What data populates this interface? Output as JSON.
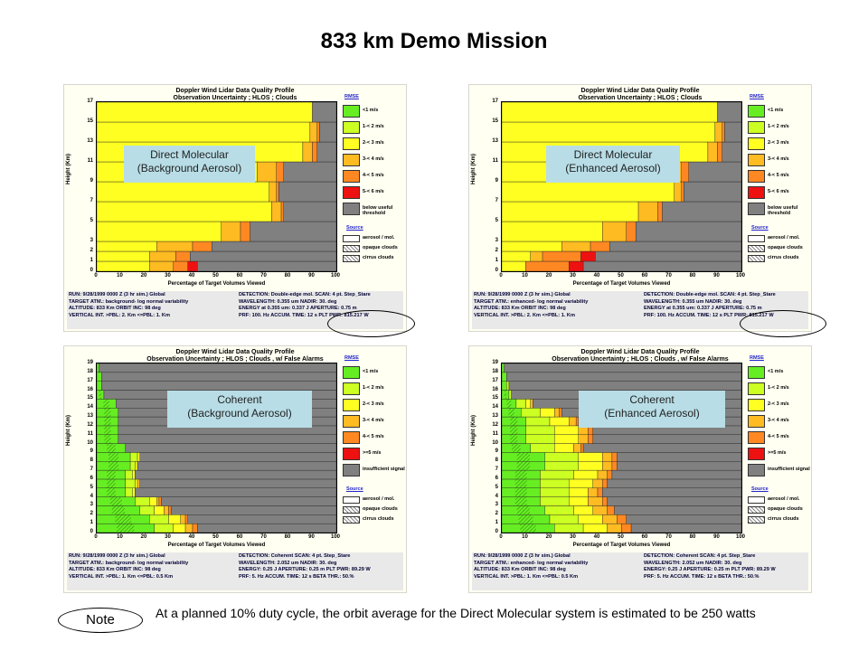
{
  "slide_title": "833 km Demo Mission",
  "note_label": "Note",
  "note_text": "At a planned 10% duty cycle, the orbit average for the Direct Molecular system is estimated to be 250 watts",
  "colors": {
    "green": "#66ee22",
    "lime": "#ccff22",
    "yellow": "#ffff22",
    "gold": "#ffbb22",
    "orange": "#ff8822",
    "red": "#ee1111",
    "gray": "#808080"
  },
  "panels": [
    {
      "id": "p1",
      "label": [
        "Direct Molecular",
        "(Background Aerosol)"
      ],
      "title_line1": "Doppler Wind Lidar Data Quality Profile",
      "title_line2": "Observation Uncertainty ; HLOS ; Clouds",
      "y_axis_title": "Height (Km)",
      "x_axis_title": "Percentage of Target Volumes Viewed",
      "legend_title": "RMSE",
      "legend_items": [
        "<1 m/s",
        "1-< 2 m/s",
        "2-< 3 m/s",
        "3-< 4 m/s",
        "4-< 5 m/s",
        "5-< 6 m/s",
        "below useful threshold"
      ],
      "source_title": "Source",
      "source_items": [
        "aerosol / mol.",
        "opaque clouds",
        "cirrus clouds"
      ],
      "info_left": [
        "RUN:   9/28/1999 0000 Z (3 hr sim.) Global",
        "TARGET ATM.: background- log normal variability",
        "ALTITUDE: 833 Km      ORBIT INC: 98 deg",
        "VERTICAL INT. >PBL: 2. Km   <=PBL: 1. Km"
      ],
      "info_right": [
        "DETECTION: Double-edge mol.  SCAN: 4 pt. Step_Stare",
        "WAVELENGTH:  0.355 um     NADIR: 30. deg",
        "ENERGY at 0.355 um:  0.337 J   APERTURE: 0.75 m",
        "PRF: 100. Hz     ACCUM. TIME: 12 s PLT PWR: 815.217 W"
      ]
    },
    {
      "id": "p2",
      "label": [
        "Direct Molecular",
        "(Enhanced Aerosol)"
      ],
      "title_line1": "Doppler Wind Lidar Data Quality Profile",
      "title_line2": "Observation Uncertainty ; HLOS ; Clouds",
      "y_axis_title": "Height (Km)",
      "x_axis_title": "Percentage of Target Volumes Viewed",
      "legend_title": "RMSE",
      "legend_items": [
        "<1 m/s",
        "1-< 2 m/s",
        "2-< 3 m/s",
        "3-< 4 m/s",
        "4-< 5 m/s",
        "5-< 6 m/s",
        "below useful threshold"
      ],
      "source_title": "Source",
      "source_items": [
        "aerosol / mol.",
        "opaque clouds",
        "cirrus clouds"
      ],
      "info_left": [
        "RUN:   9/28/1999 0000 Z (3 hr sim.) Global",
        "TARGET ATM.: enhanced- log normal variability",
        "ALTITUDE: 833 Km      ORBIT INC: 98 deg",
        "VERTICAL INT. >PBL: 2. Km   <=PBL: 1. Km"
      ],
      "info_right": [
        "DETECTION: Double-edge mol.  SCAN: 4 pt. Step_Stare",
        "WAVELENGTH:  0.355 um     NADIR: 30. deg",
        "ENERGY at 0.355 um:  0.337 J   APERTURE: 0.75 m",
        "PRF: 100. Hz     ACCUM. TIME: 12 s PLT PWR: 815.217 W"
      ]
    },
    {
      "id": "p3",
      "label": [
        "Coherent",
        "(Background Aerosol)"
      ],
      "title_line1": "Doppler Wind Lidar Data Quality Profile",
      "title_line2": "Observation Uncertainty ; HLOS ; Clouds , w/ False Alarms",
      "y_axis_title": "Height (Km)",
      "x_axis_title": "Percentage of Target Volumes Viewed",
      "legend_title": "RMSE",
      "legend_items": [
        "<1 m/s",
        "1-< 2 m/s",
        "2-< 3 m/s",
        "3-< 4 m/s",
        "4-< 5 m/s",
        ">=5 m/s",
        "insufficient signal"
      ],
      "source_title": "Source",
      "source_items": [
        "aerosol / mol.",
        "opaque clouds",
        "cirrus clouds"
      ],
      "info_left": [
        "RUN:   9/28/1999 0000 Z (3 hr sim.) Global",
        "TARGET ATM.: background- log normal variability",
        "ALTITUDE: 833 Km      ORBIT INC: 98 deg",
        "VERTICAL INT. >PBL: 1. Km   <=PBL: 0.5 Km"
      ],
      "info_right": [
        "DETECTION: Coherent  SCAN: 4 pt. Step_Stare",
        "WAVELENGTH:  2.052 um     NADIR: 30. deg",
        "ENERGY: 0.25 J   APERTURE: 0.25 m   PLT PWR: 89.29 W",
        "PRF: 5. Hz     ACCUM. TIME: 12 s    BETA THR.: 50.%"
      ]
    },
    {
      "id": "p4",
      "label": [
        "Coherent",
        "(Enhanced Aerosol)"
      ],
      "title_line1": "Doppler Wind Lidar Data Quality Profile",
      "title_line2": "Observation Uncertainty ; HLOS ; Clouds , w/ False Alarms",
      "y_axis_title": "Height (Km)",
      "x_axis_title": "Percentage of Target Volumes Viewed",
      "legend_title": "RMSE",
      "legend_items": [
        "<1 m/s",
        "1-< 2 m/s",
        "2-< 3 m/s",
        "3-< 4 m/s",
        "4-< 5 m/s",
        ">=5 m/s",
        "insufficient signal"
      ],
      "source_title": "Source",
      "source_items": [
        "aerosol / mol.",
        "opaque clouds",
        "cirrus clouds"
      ],
      "info_left": [
        "RUN:   9/28/1999 0000 Z (3 hr sim.) Global",
        "TARGET ATM.: enhanced- log normal variability",
        "ALTITUDE: 833 Km      ORBIT INC: 98 deg",
        "VERTICAL INT. >PBL: 1. Km   <=PBL: 0.5 Km"
      ],
      "info_right": [
        "DETECTION: Coherent  SCAN: 4 pt. Step_Stare",
        "WAVELENGTH:  2.052 um     NADIR: 30. deg",
        "ENERGY: 0.25 J   APERTURE: 0.25 m   PLT PWR: 89.29 W",
        "PRF: 5. Hz     ACCUM. TIME: 12 s    BETA THR.: 50.%"
      ]
    }
  ],
  "chart_data": [
    {
      "type": "bar",
      "orientation": "horizontal-stacked",
      "panel": "p1",
      "title": "Doppler Wind Lidar Data Quality Profile",
      "xlabel": "Percentage of Target Volumes Viewed",
      "ylabel": "Height (Km)",
      "xlim": [
        0,
        100
      ],
      "ylim": [
        0,
        17
      ],
      "x_ticks": [
        0,
        10,
        20,
        30,
        40,
        50,
        60,
        70,
        80,
        90,
        100
      ],
      "y_ticks": [
        0,
        1,
        2,
        3,
        5,
        7,
        9,
        11,
        13,
        15,
        17
      ],
      "categories_km": [
        [
          0,
          1
        ],
        [
          1,
          2
        ],
        [
          2,
          3
        ],
        [
          3,
          5
        ],
        [
          5,
          7
        ],
        [
          7,
          9
        ],
        [
          9,
          11
        ],
        [
          11,
          13
        ],
        [
          13,
          15
        ],
        [
          15,
          17
        ]
      ],
      "series": [
        {
          "name": "<1 m/s",
          "values": [
            0,
            0,
            0,
            0,
            0,
            0,
            0,
            0,
            0,
            0
          ]
        },
        {
          "name": "1-< 2 m/s",
          "values": [
            0,
            0,
            0,
            0,
            0,
            0,
            0,
            0,
            0,
            0
          ]
        },
        {
          "name": "2-< 3 m/s",
          "values": [
            22,
            22,
            25,
            52,
            73,
            72,
            67,
            86,
            89,
            90
          ]
        },
        {
          "name": "3-< 4 m/s",
          "values": [
            10,
            11,
            15,
            8,
            4,
            3,
            8,
            4,
            3,
            0
          ]
        },
        {
          "name": "4-< 5 m/s",
          "values": [
            6,
            6,
            8,
            4,
            1,
            1,
            3,
            2,
            1,
            0
          ]
        },
        {
          "name": "5-< 6 m/s",
          "values": [
            4,
            0,
            0,
            0,
            0,
            0,
            0,
            0,
            0,
            0
          ]
        },
        {
          "name": "below useful threshold",
          "values": [
            58,
            61,
            52,
            36,
            22,
            24,
            22,
            8,
            7,
            10
          ]
        }
      ]
    },
    {
      "type": "bar",
      "orientation": "horizontal-stacked",
      "panel": "p2",
      "title": "Doppler Wind Lidar Data Quality Profile",
      "xlabel": "Percentage of Target Volumes Viewed",
      "ylabel": "Height (Km)",
      "xlim": [
        0,
        100
      ],
      "ylim": [
        0,
        17
      ],
      "x_ticks": [
        0,
        10,
        20,
        30,
        40,
        50,
        60,
        70,
        80,
        90,
        100
      ],
      "y_ticks": [
        0,
        1,
        2,
        3,
        5,
        7,
        9,
        11,
        13,
        15,
        17
      ],
      "categories_km": [
        [
          0,
          1
        ],
        [
          1,
          2
        ],
        [
          2,
          3
        ],
        [
          3,
          5
        ],
        [
          5,
          7
        ],
        [
          7,
          9
        ],
        [
          9,
          11
        ],
        [
          11,
          13
        ],
        [
          13,
          15
        ],
        [
          15,
          17
        ]
      ],
      "series": [
        {
          "name": "<1 m/s",
          "values": [
            0,
            0,
            0,
            0,
            0,
            0,
            0,
            0,
            0,
            0
          ]
        },
        {
          "name": "1-< 2 m/s",
          "values": [
            0,
            0,
            0,
            0,
            0,
            0,
            0,
            0,
            0,
            0
          ]
        },
        {
          "name": "2-< 3 m/s",
          "values": [
            10,
            12,
            25,
            42,
            57,
            72,
            67,
            86,
            89,
            90
          ]
        },
        {
          "name": "3-< 4 m/s",
          "values": [
            0,
            5,
            12,
            10,
            8,
            3,
            8,
            4,
            3,
            0
          ]
        },
        {
          "name": "4-< 5 m/s",
          "values": [
            18,
            16,
            8,
            4,
            2,
            1,
            3,
            2,
            1,
            0
          ]
        },
        {
          "name": "5-< 6 m/s",
          "values": [
            6,
            6,
            0,
            0,
            0,
            0,
            0,
            0,
            0,
            0
          ]
        },
        {
          "name": "below useful threshold",
          "values": [
            66,
            61,
            55,
            44,
            33,
            24,
            22,
            8,
            7,
            10
          ]
        }
      ]
    },
    {
      "type": "bar",
      "orientation": "horizontal-stacked",
      "panel": "p3",
      "title": "Doppler Wind Lidar Data Quality Profile",
      "xlabel": "Percentage of Target Volumes Viewed",
      "ylabel": "Height (Km)",
      "xlim": [
        0,
        100
      ],
      "ylim": [
        0,
        19
      ],
      "x_ticks": [
        0,
        10,
        20,
        30,
        40,
        50,
        60,
        70,
        80,
        90,
        100
      ],
      "y_ticks": [
        0,
        1,
        2,
        3,
        4,
        5,
        6,
        7,
        8,
        9,
        10,
        11,
        12,
        13,
        14,
        15,
        16,
        17,
        18,
        19
      ],
      "categories_km": [
        0,
        1,
        2,
        3,
        4,
        5,
        6,
        7,
        8,
        9,
        10,
        11,
        12,
        13,
        14,
        15,
        16,
        17,
        18
      ],
      "series": [
        {
          "name": "<1 m/s",
          "values": [
            24,
            22,
            18,
            16,
            12,
            12,
            12,
            14,
            14,
            12,
            9,
            9,
            9,
            9,
            8,
            3,
            2,
            2,
            1
          ]
        },
        {
          "name": "1-< 2 m/s",
          "values": [
            8,
            8,
            6,
            6,
            3,
            4,
            3,
            2,
            3,
            0,
            0,
            0,
            0,
            0,
            0,
            0,
            0,
            0,
            0
          ]
        },
        {
          "name": "2-< 3 m/s",
          "values": [
            5,
            5,
            4,
            3,
            1,
            1,
            1,
            1,
            1,
            0,
            0,
            0,
            0,
            0,
            0,
            0,
            0,
            0,
            0
          ]
        },
        {
          "name": "3-< 4 m/s",
          "values": [
            3,
            2,
            2,
            1,
            0,
            1,
            0,
            0,
            0,
            0,
            0,
            0,
            0,
            0,
            0,
            0,
            0,
            0,
            0
          ]
        },
        {
          "name": "4-< 5 m/s",
          "values": [
            2,
            1,
            1,
            1,
            0,
            0,
            0,
            0,
            0,
            0,
            0,
            0,
            0,
            0,
            0,
            0,
            0,
            0,
            0
          ]
        },
        {
          "name": ">=5 m/s",
          "values": [
            0,
            0,
            0,
            0,
            0,
            0,
            0,
            0,
            0,
            0,
            0,
            0,
            0,
            0,
            0,
            0,
            0,
            0,
            0
          ]
        },
        {
          "name": "insufficient signal",
          "values": [
            58,
            62,
            69,
            73,
            84,
            82,
            84,
            83,
            82,
            88,
            91,
            91,
            91,
            91,
            92,
            97,
            98,
            98,
            99
          ]
        }
      ]
    },
    {
      "type": "bar",
      "orientation": "horizontal-stacked",
      "panel": "p4",
      "title": "Doppler Wind Lidar Data Quality Profile",
      "xlabel": "Percentage of Target Volumes Viewed",
      "ylabel": "Height (Km)",
      "xlim": [
        0,
        100
      ],
      "ylim": [
        0,
        19
      ],
      "x_ticks": [
        0,
        10,
        20,
        30,
        40,
        50,
        60,
        70,
        80,
        90,
        100
      ],
      "y_ticks": [
        0,
        1,
        2,
        3,
        4,
        5,
        6,
        7,
        8,
        9,
        10,
        11,
        12,
        13,
        14,
        15,
        16,
        17,
        18,
        19
      ],
      "categories_km": [
        0,
        1,
        2,
        3,
        4,
        5,
        6,
        7,
        8,
        9,
        10,
        11,
        12,
        13,
        14,
        15,
        16,
        17,
        18
      ],
      "series": [
        {
          "name": "<1 m/s",
          "values": [
            22,
            20,
            18,
            16,
            16,
            16,
            16,
            18,
            18,
            12,
            10,
            10,
            10,
            8,
            6,
            3,
            2,
            2,
            1
          ]
        },
        {
          "name": "1-< 2 m/s",
          "values": [
            12,
            12,
            12,
            12,
            12,
            12,
            14,
            14,
            14,
            10,
            12,
            12,
            10,
            8,
            4,
            1,
            1,
            0,
            0
          ]
        },
        {
          "name": "2-< 3 m/s",
          "values": [
            10,
            10,
            8,
            8,
            8,
            10,
            10,
            10,
            10,
            8,
            10,
            10,
            8,
            6,
            2,
            0,
            0,
            0,
            0
          ]
        },
        {
          "name": "3-< 4 m/s",
          "values": [
            6,
            6,
            6,
            6,
            4,
            4,
            4,
            4,
            4,
            3,
            4,
            4,
            3,
            2,
            1,
            0,
            0,
            0,
            0
          ]
        },
        {
          "name": "4-< 5 m/s",
          "values": [
            4,
            4,
            3,
            2,
            2,
            2,
            2,
            2,
            2,
            1,
            2,
            2,
            1,
            1,
            0,
            0,
            0,
            0,
            0
          ]
        },
        {
          "name": ">=5 m/s",
          "values": [
            0,
            0,
            0,
            0,
            0,
            0,
            0,
            0,
            0,
            0,
            0,
            0,
            0,
            0,
            0,
            0,
            0,
            0,
            0
          ]
        },
        {
          "name": "insufficient signal",
          "values": [
            46,
            48,
            53,
            56,
            58,
            56,
            54,
            52,
            52,
            66,
            62,
            62,
            68,
            75,
            87,
            96,
            97,
            98,
            99
          ]
        }
      ]
    }
  ]
}
